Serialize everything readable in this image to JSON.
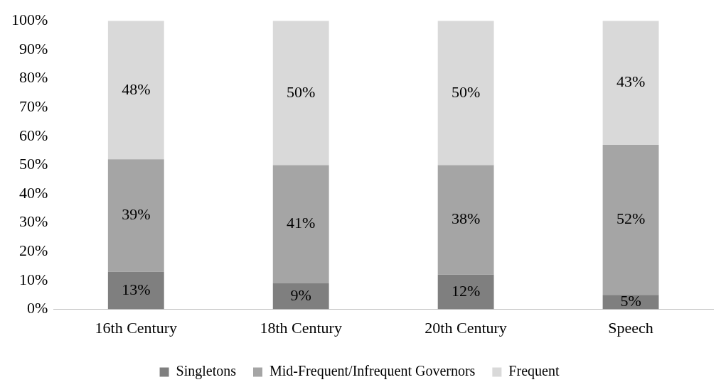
{
  "chart_data": {
    "type": "bar",
    "stacked": true,
    "categories": [
      "16th Century",
      "18th Century",
      "20th Century",
      "Speech"
    ],
    "series": [
      {
        "name": "Singletons",
        "color": "#7f7f7f",
        "values": [
          13,
          9,
          12,
          5
        ],
        "value_labels": [
          "13%",
          "9%",
          "12%",
          "5%"
        ]
      },
      {
        "name": "Mid-Frequent/Infrequent Governors",
        "color": "#a5a5a5",
        "values": [
          39,
          41,
          38,
          52
        ],
        "value_labels": [
          "39%",
          "41%",
          "38%",
          "52%"
        ]
      },
      {
        "name": "Frequent",
        "color": "#d9d9d9",
        "values": [
          48,
          50,
          50,
          43
        ],
        "value_labels": [
          "48%",
          "50%",
          "50%",
          "43%"
        ]
      }
    ],
    "ylim": [
      0,
      100
    ],
    "yticks": [
      {
        "value": 0,
        "label": "0%"
      },
      {
        "value": 10,
        "label": "10%"
      },
      {
        "value": 20,
        "label": "20%"
      },
      {
        "value": 30,
        "label": "30%"
      },
      {
        "value": 40,
        "label": "40%"
      },
      {
        "value": 50,
        "label": "50%"
      },
      {
        "value": 60,
        "label": "60%"
      },
      {
        "value": 70,
        "label": "70%"
      },
      {
        "value": 80,
        "label": "80%"
      },
      {
        "value": 90,
        "label": "90%"
      },
      {
        "value": 100,
        "label": "100%"
      }
    ],
    "grid": false,
    "legend": "bottom"
  }
}
